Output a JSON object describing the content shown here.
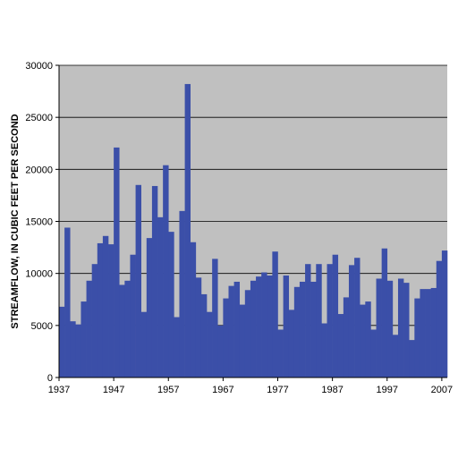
{
  "chart_data": {
    "type": "bar",
    "title": "",
    "xlabel": "",
    "ylabel": "STREAMFLOW, IN CUBIC FEET PER SECOND",
    "ylim": [
      0,
      30000
    ],
    "y_ticks": [
      0,
      5000,
      10000,
      15000,
      20000,
      25000,
      30000
    ],
    "y_tick_labels": [
      "0",
      "5000",
      "10000",
      "15000",
      "20000",
      "25000",
      "30000"
    ],
    "x_tick_labels": [
      "1937",
      "1947",
      "1957",
      "1967",
      "1977",
      "1987",
      "1997",
      "2007"
    ],
    "x_tick_years": [
      1937,
      1947,
      1957,
      1967,
      1977,
      1987,
      1997,
      2007
    ],
    "grid": true,
    "legend": "none",
    "colors": {
      "bar": "#3b4fa8",
      "plot_background": "#c0c0c0",
      "gridline": "#000000"
    },
    "categories": [
      1937,
      1938,
      1939,
      1940,
      1941,
      1942,
      1943,
      1944,
      1945,
      1946,
      1947,
      1948,
      1949,
      1950,
      1951,
      1952,
      1953,
      1954,
      1955,
      1956,
      1957,
      1958,
      1959,
      1960,
      1961,
      1962,
      1963,
      1964,
      1965,
      1966,
      1967,
      1968,
      1969,
      1970,
      1971,
      1972,
      1973,
      1974,
      1975,
      1976,
      1977,
      1978,
      1979,
      1980,
      1981,
      1982,
      1983,
      1984,
      1985,
      1986,
      1987,
      1988,
      1989,
      1990,
      1991,
      1992,
      1993,
      1994,
      1995,
      1996,
      1997,
      1998,
      1999,
      2000,
      2001,
      2002,
      2003,
      2004,
      2005,
      2006,
      2007
    ],
    "values": [
      6800,
      14400,
      5400,
      5100,
      7300,
      9300,
      10900,
      12900,
      13600,
      12800,
      22100,
      8900,
      9300,
      11800,
      18500,
      6300,
      13400,
      18400,
      15400,
      20400,
      14000,
      5800,
      16000,
      28200,
      13000,
      9600,
      8000,
      6300,
      11400,
      5000,
      7600,
      8800,
      9200,
      7000,
      8400,
      9300,
      9700,
      10100,
      9800,
      12100,
      4600,
      9800,
      6500,
      8700,
      9200,
      10900,
      9200,
      10900,
      5200,
      10900,
      11800,
      6100,
      7700,
      10800,
      11500,
      7000,
      7300,
      4600,
      9500,
      12400,
      9300,
      4100,
      9500,
      9100,
      3600,
      7600,
      8500,
      8500,
      8600,
      11200,
      12200
    ]
  }
}
